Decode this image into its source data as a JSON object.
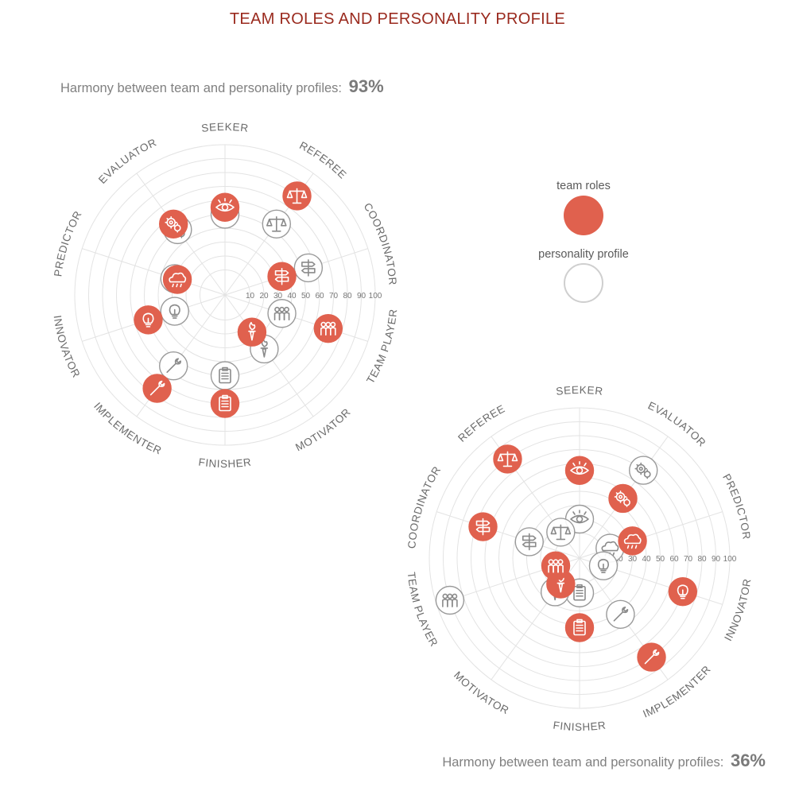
{
  "title": "TEAM ROLES AND PERSONALITY PROFILE",
  "harmony_label": "Harmony between team and personality profiles:",
  "legend": {
    "team_label": "team roles",
    "personality_label": "personality profile",
    "team_color": "#e0614e",
    "personality_color": "#ffffff",
    "personality_border": "#cfcfcf"
  },
  "colors": {
    "grid": "#e3e3e3",
    "axis_label": "#6b6b6b",
    "title": "#9a2a1e",
    "tick": "#777777",
    "icon_stroke": "#8a8a8a"
  },
  "chart_data": [
    {
      "type": "radar",
      "harmony": "93%",
      "r_ticks": [
        "10",
        "20",
        "30",
        "40",
        "50",
        "60",
        "70",
        "80",
        "90",
        "100"
      ],
      "rlim": [
        0,
        100
      ],
      "axes": [
        "SEEKER",
        "EVALUATOR",
        "PREDICTOR",
        "INNOVATOR",
        "IMPLEMENTER",
        "FINISHER",
        "MOTIVATOR",
        "TEAM PLAYER",
        "COORDINATOR",
        "REFEREE"
      ],
      "icons": [
        "eye-icon",
        "gears-icon",
        "cloud-icon",
        "bulb-icon",
        "wrench-icon",
        "clipboard-icon",
        "torch-icon",
        "team-icon",
        "signpost-icon",
        "scales-icon"
      ],
      "series": [
        {
          "name": "team roles",
          "values": [
            55,
            55,
            28,
            50,
            75,
            70,
            25,
            70,
            35,
            80
          ]
        },
        {
          "name": "personality profile",
          "values": [
            50,
            50,
            30,
            30,
            55,
            50,
            40,
            35,
            55,
            55
          ]
        }
      ]
    },
    {
      "type": "radar",
      "harmony": "36%",
      "r_ticks": [
        "10",
        "20",
        "30",
        "40",
        "50",
        "60",
        "70",
        "80",
        "90",
        "100"
      ],
      "rlim": [
        0,
        100
      ],
      "axes": [
        "SEEKER",
        "EVALUATOR",
        "PREDICTOR",
        "INNOVATOR",
        "IMPLEMENTER",
        "FINISHER",
        "MOTIVATOR",
        "TEAM PLAYER",
        "COORDINATOR",
        "REFEREE"
      ],
      "icons": [
        "eye-icon",
        "gears-icon",
        "cloud-icon",
        "bulb-icon",
        "wrench-icon",
        "clipboard-icon",
        "torch-icon",
        "team-icon",
        "signpost-icon",
        "scales-icon"
      ],
      "series": [
        {
          "name": "team roles",
          "values": [
            55,
            45,
            32,
            70,
            80,
            42,
            15,
            10,
            65,
            80
          ]
        },
        {
          "name": "personality profile",
          "values": [
            20,
            70,
            15,
            10,
            42,
            17,
            22,
            90,
            30,
            15
          ]
        }
      ]
    }
  ]
}
